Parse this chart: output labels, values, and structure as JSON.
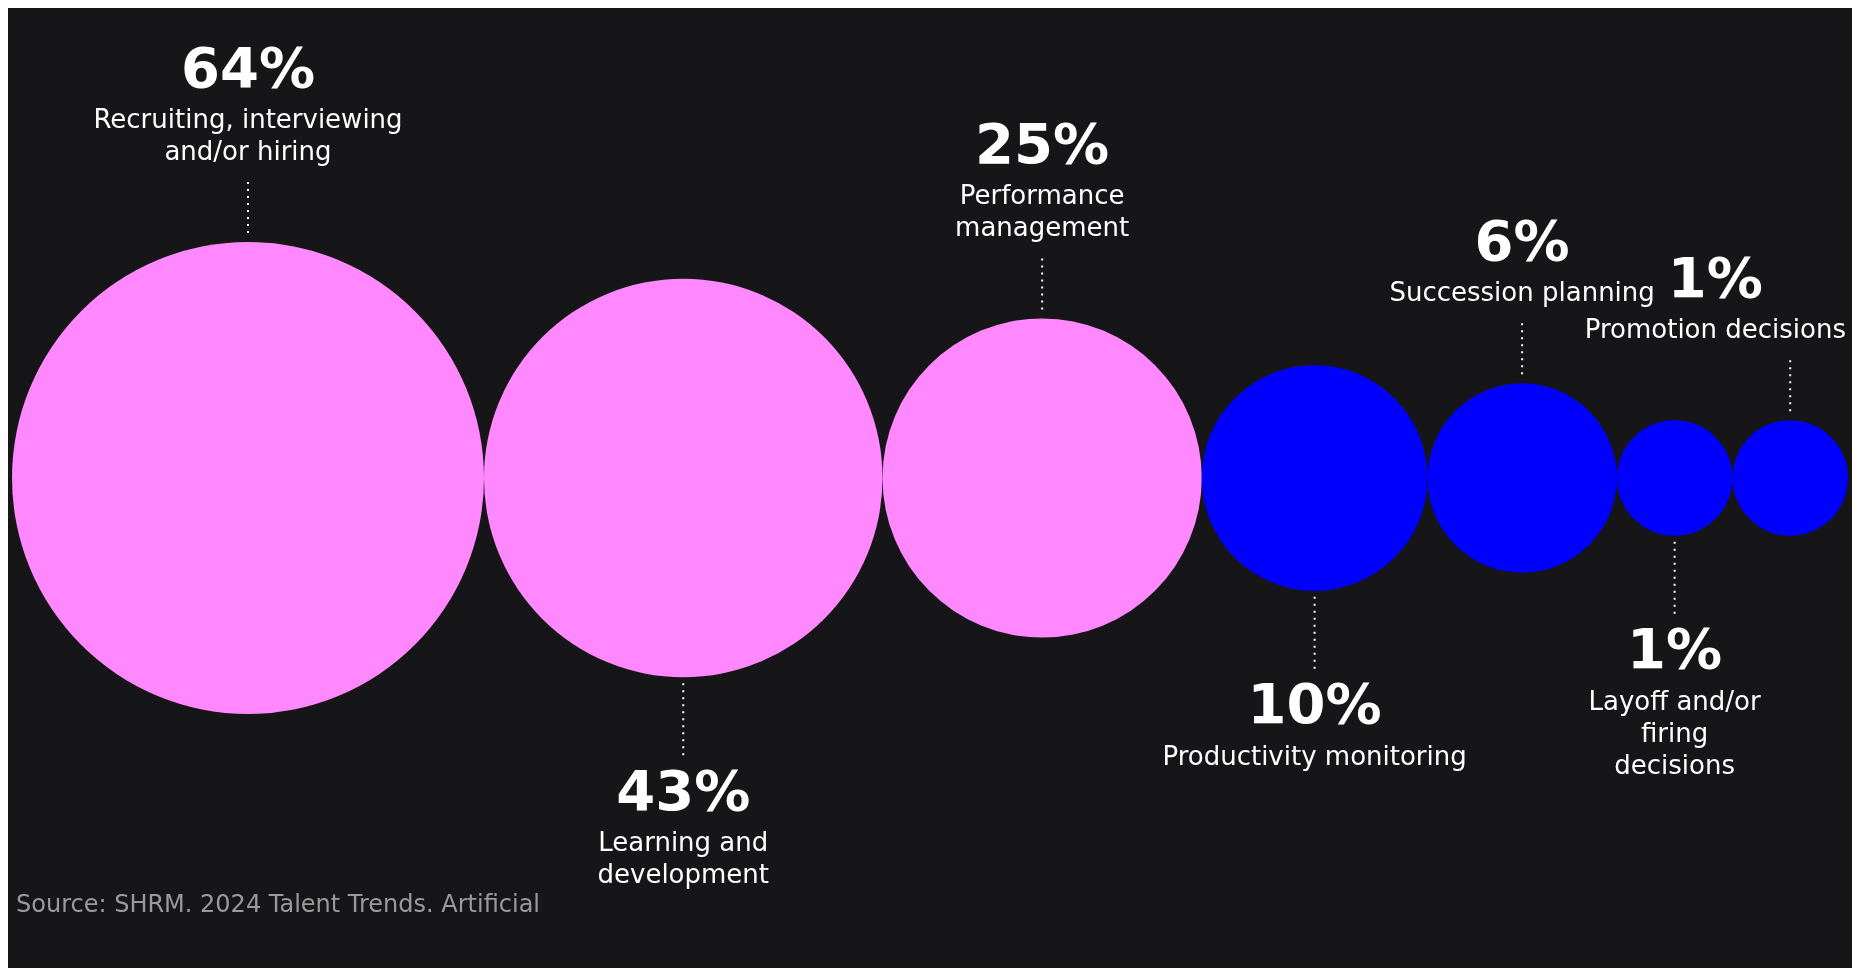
{
  "chart_data": {
    "type": "other",
    "categories": [
      "Recruiting, interviewing and/or hiring",
      "Learning and development",
      "Performance management",
      "Productivity monitoring",
      "Succession planning",
      "Layoff and/or firing decisions",
      "Promotion decisions"
    ],
    "values": [
      64,
      43,
      25,
      10,
      6,
      1,
      1
    ],
    "value_labels": [
      "64%",
      "43%",
      "25%",
      "10%",
      "6%",
      "1%",
      "1%"
    ],
    "colors": [
      "#ff88ff",
      "#ff88ff",
      "#ff88ff",
      "#0000ff",
      "#0000ff",
      "#0000ff",
      "#0000ff"
    ],
    "annotations": [
      "Source: SHRM. 2024 Talent Trends. Artificial"
    ]
  }
}
